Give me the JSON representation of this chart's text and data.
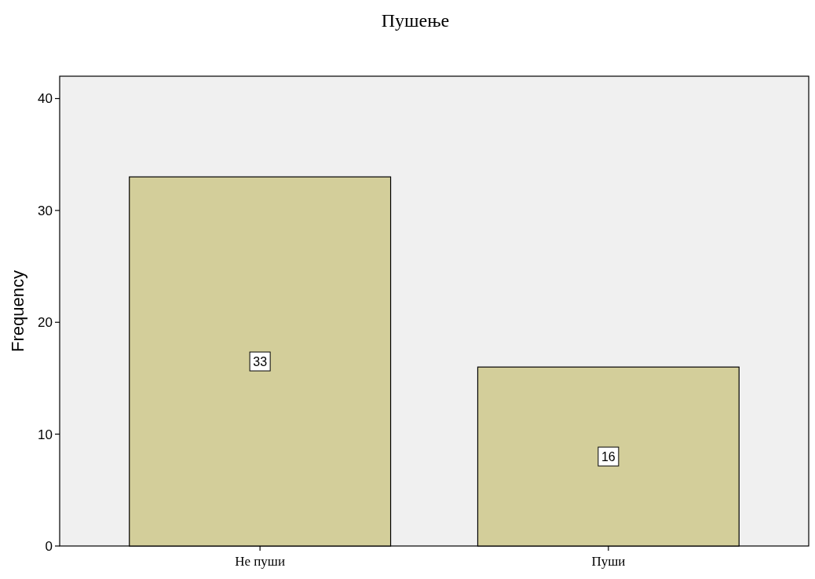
{
  "chart_data": {
    "type": "bar",
    "title": "Пушење",
    "ylabel": "Frequency",
    "categories": [
      "Не пуши",
      "Пуши"
    ],
    "values": [
      33,
      16
    ],
    "color": "#d3ce9a",
    "ylim": [
      0,
      42
    ],
    "yticks": [
      0,
      10,
      20,
      30,
      40
    ],
    "data_labels": true,
    "grid": false
  }
}
